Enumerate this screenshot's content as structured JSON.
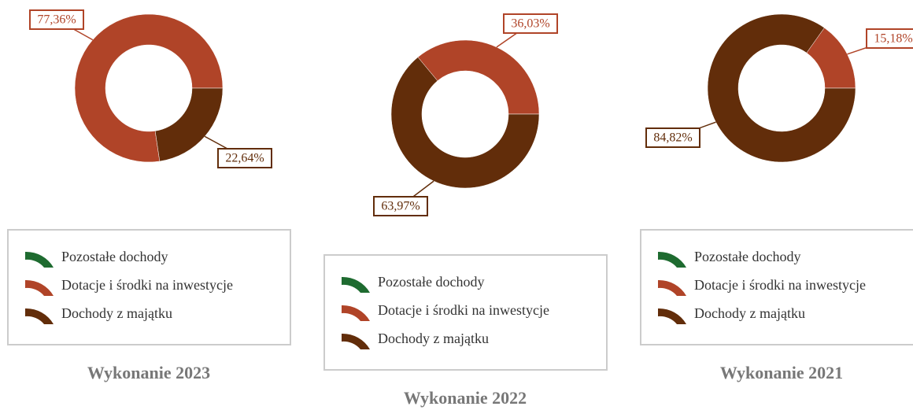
{
  "chart_data": [
    {
      "type": "pie",
      "title": "Wykonanie 2023",
      "categories": [
        "Pozostałe dochody",
        "Dotacje i środki na inwestycje",
        "Dochody z majątku"
      ],
      "values": [
        0,
        77.36,
        22.64
      ],
      "value_labels": [
        null,
        "77,36%",
        "22,64%"
      ],
      "colors": [
        "#1e6b30",
        "#b04428",
        "#622d0a"
      ]
    },
    {
      "type": "pie",
      "title": "Wykonanie 2022",
      "categories": [
        "Pozostałe dochody",
        "Dotacje i środki na inwestycje",
        "Dochody z majątku"
      ],
      "values": [
        0,
        36.03,
        63.97
      ],
      "value_labels": [
        null,
        "36,03%",
        "63,97%"
      ],
      "colors": [
        "#1e6b30",
        "#b04428",
        "#622d0a"
      ]
    },
    {
      "type": "pie",
      "title": "Wykonanie 2021",
      "categories": [
        "Pozostałe dochody",
        "Dotacje i środki na inwestycje",
        "Dochody z majątku"
      ],
      "values": [
        0,
        15.18,
        84.82
      ],
      "value_labels": [
        null,
        "15,18%",
        "84,82%"
      ],
      "colors": [
        "#1e6b30",
        "#b04428",
        "#622d0a"
      ]
    }
  ]
}
